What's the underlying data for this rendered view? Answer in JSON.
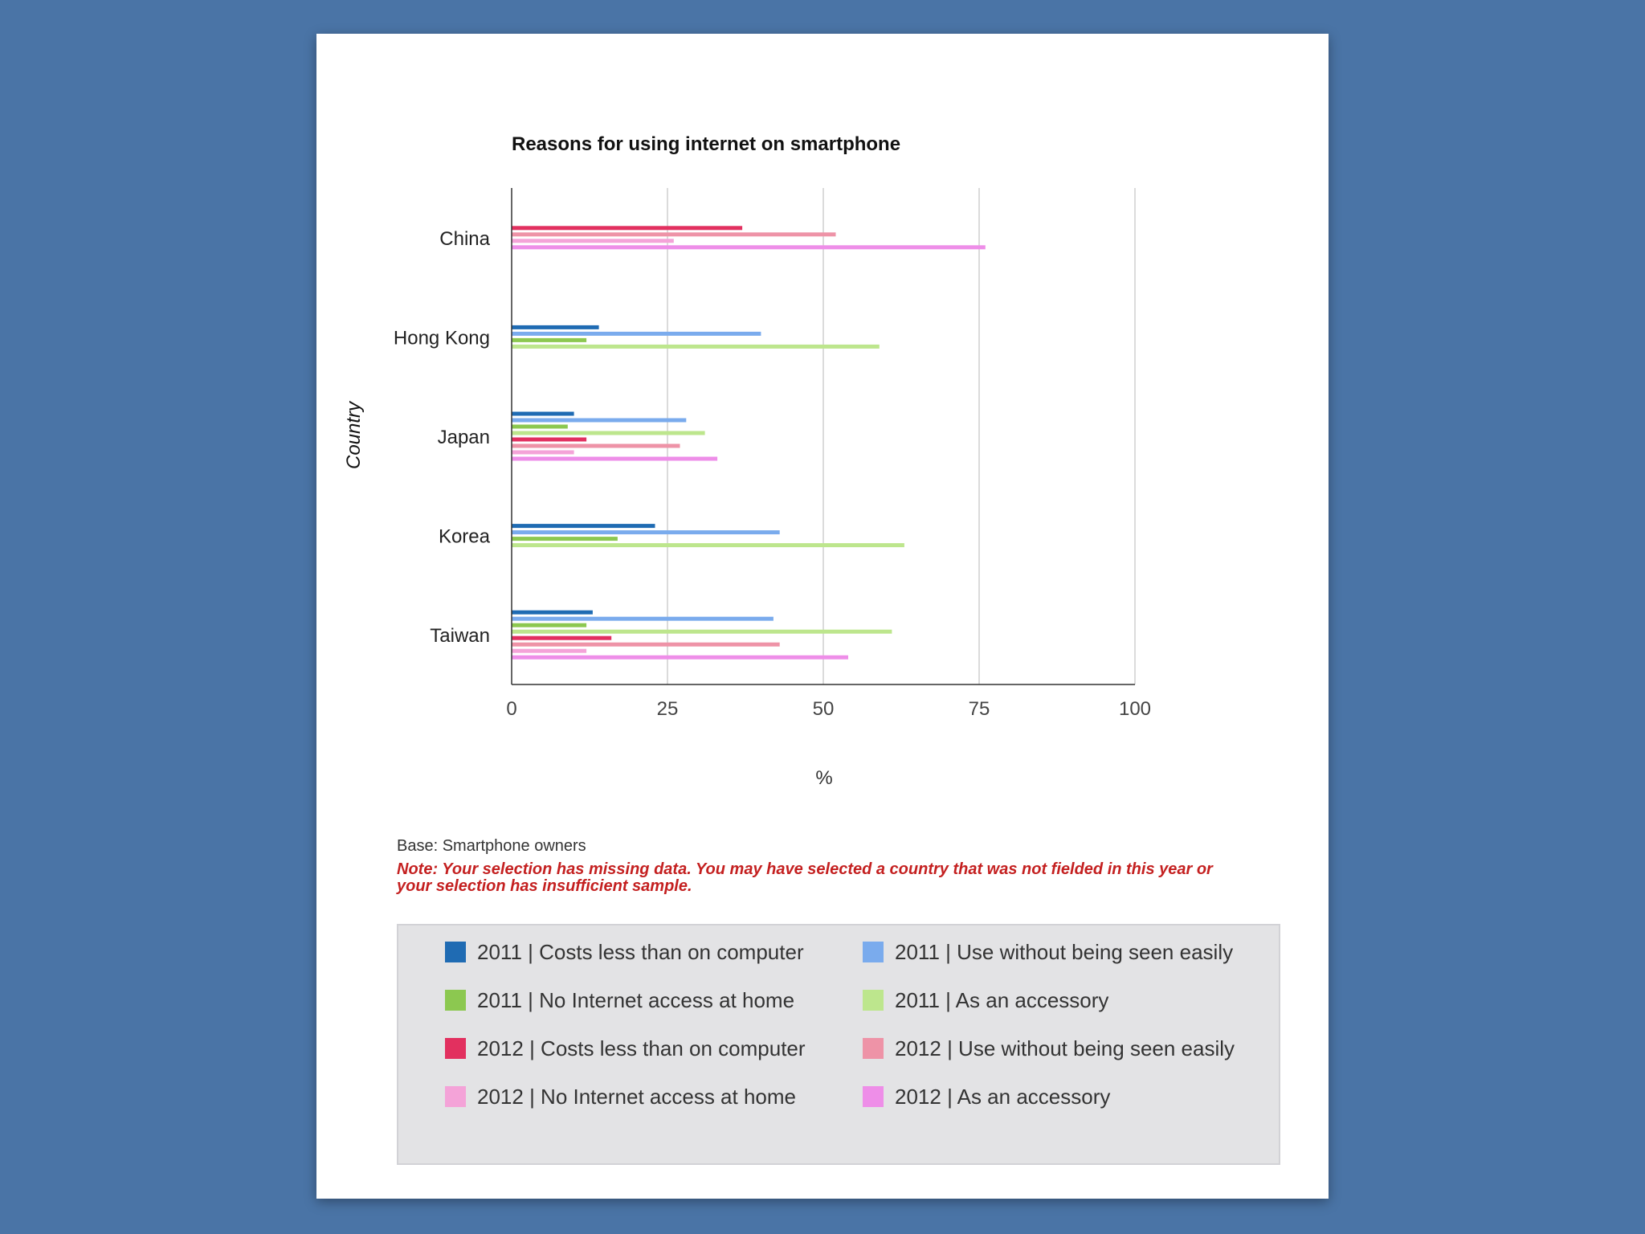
{
  "chart_data": {
    "type": "bar",
    "orientation": "horizontal",
    "title": "Reasons for using internet on smartphone",
    "xlabel": "%",
    "ylabel": "Country",
    "xlim": [
      0,
      100
    ],
    "xticks": [
      "0",
      "25",
      "50",
      "75",
      "100"
    ],
    "grid": true,
    "legend_position": "bottom",
    "categories": [
      "China",
      "Hong Kong",
      "Japan",
      "Korea",
      "Taiwan"
    ],
    "series": [
      {
        "name": "2011 | Costs less than on computer",
        "color": "#1f6bb3",
        "values": [
          null,
          14,
          10,
          23,
          13
        ]
      },
      {
        "name": "2011 | Use without being seen easily",
        "color": "#7aabed",
        "values": [
          null,
          40,
          28,
          43,
          42
        ]
      },
      {
        "name": "2011 | No Internet access at home",
        "color": "#8cc850",
        "values": [
          null,
          12,
          9,
          17,
          12
        ]
      },
      {
        "name": "2011 | As an accessory",
        "color": "#bde68d",
        "values": [
          null,
          59,
          31,
          63,
          61
        ]
      },
      {
        "name": "2012 | Costs less than on computer",
        "color": "#e2305f",
        "values": [
          37,
          null,
          12,
          null,
          16
        ]
      },
      {
        "name": "2012 | Use without being seen easily",
        "color": "#ee93a7",
        "values": [
          52,
          null,
          27,
          null,
          43
        ]
      },
      {
        "name": "2012 | No Internet access at home",
        "color": "#f4a3d8",
        "values": [
          26,
          null,
          10,
          null,
          12
        ]
      },
      {
        "name": "2012 | As an accessory",
        "color": "#ee8ee8",
        "values": [
          76,
          null,
          33,
          null,
          54
        ]
      }
    ]
  },
  "notes": {
    "base": "Base: Smartphone owners",
    "warning": "Note: Your selection has missing data. You may have selected a country that was not fielded in this year or your selection has insufficient sample."
  }
}
